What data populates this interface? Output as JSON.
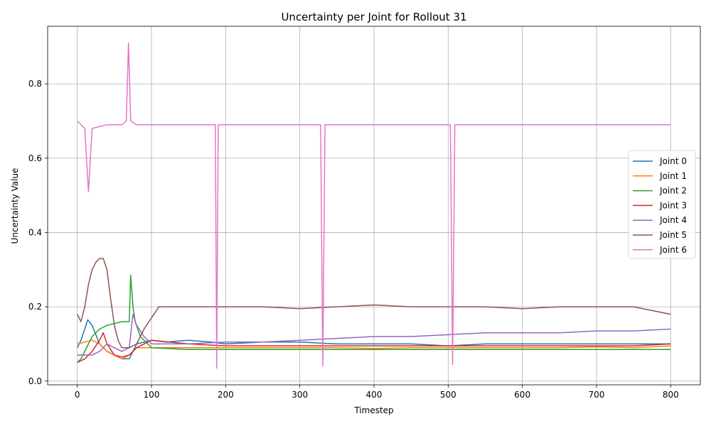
{
  "chart_data": {
    "type": "line",
    "title": "Uncertainty per Joint for Rollout 31",
    "xlabel": "Timestep",
    "ylabel": "Uncertainty Value",
    "xlim": [
      -40,
      840
    ],
    "ylim": [
      -0.01,
      0.955
    ],
    "xticks": [
      0,
      100,
      200,
      300,
      400,
      500,
      600,
      700,
      800
    ],
    "yticks": [
      0.0,
      0.2,
      0.4,
      0.6,
      0.8
    ],
    "ytick_labels": [
      "0.0",
      "0.2",
      "0.4",
      "0.6",
      "0.8"
    ],
    "grid": true,
    "legend_position": "center-right",
    "series": [
      {
        "name": "Joint 0",
        "color": "#1f77b4",
        "x": [
          0,
          5,
          10,
          14,
          20,
          30,
          40,
          50,
          60,
          70,
          80,
          100,
          120,
          150,
          180,
          200,
          250,
          300,
          350,
          400,
          450,
          500,
          550,
          600,
          650,
          700,
          750,
          800
        ],
        "y": [
          0.09,
          0.11,
          0.14,
          0.165,
          0.15,
          0.1,
          0.08,
          0.07,
          0.06,
          0.06,
          0.1,
          0.11,
          0.105,
          0.11,
          0.105,
          0.1,
          0.105,
          0.105,
          0.1,
          0.1,
          0.1,
          0.095,
          0.1,
          0.1,
          0.1,
          0.1,
          0.1,
          0.1
        ]
      },
      {
        "name": "Joint 1",
        "color": "#ff7f0e",
        "x": [
          0,
          10,
          20,
          30,
          40,
          50,
          60,
          70,
          80,
          100,
          150,
          200,
          250,
          300,
          350,
          400,
          450,
          500,
          550,
          600,
          650,
          700,
          750,
          800
        ],
        "y": [
          0.1,
          0.105,
          0.11,
          0.1,
          0.08,
          0.07,
          0.06,
          0.07,
          0.09,
          0.09,
          0.09,
          0.09,
          0.09,
          0.09,
          0.09,
          0.088,
          0.09,
          0.09,
          0.09,
          0.09,
          0.09,
          0.092,
          0.09,
          0.095
        ]
      },
      {
        "name": "Joint 2",
        "color": "#2ca02c",
        "x": [
          0,
          5,
          10,
          20,
          30,
          40,
          50,
          60,
          70,
          72,
          75,
          78,
          85,
          100,
          150,
          200,
          250,
          300,
          350,
          400,
          450,
          500,
          550,
          600,
          650,
          700,
          750,
          800
        ],
        "y": [
          0.05,
          0.06,
          0.08,
          0.12,
          0.14,
          0.15,
          0.155,
          0.16,
          0.16,
          0.285,
          0.2,
          0.16,
          0.12,
          0.09,
          0.085,
          0.085,
          0.085,
          0.085,
          0.085,
          0.085,
          0.085,
          0.085,
          0.085,
          0.085,
          0.085,
          0.085,
          0.085,
          0.085
        ]
      },
      {
        "name": "Joint 3",
        "color": "#d62728",
        "x": [
          0,
          10,
          20,
          30,
          35,
          40,
          50,
          60,
          70,
          80,
          100,
          150,
          200,
          250,
          300,
          350,
          400,
          450,
          500,
          550,
          600,
          650,
          700,
          750,
          800
        ],
        "y": [
          0.05,
          0.06,
          0.08,
          0.11,
          0.13,
          0.1,
          0.07,
          0.065,
          0.07,
          0.09,
          0.11,
          0.1,
          0.095,
          0.095,
          0.095,
          0.095,
          0.095,
          0.095,
          0.095,
          0.095,
          0.095,
          0.095,
          0.095,
          0.095,
          0.1
        ]
      },
      {
        "name": "Joint 4",
        "color": "#9467bd",
        "x": [
          0,
          10,
          20,
          30,
          40,
          50,
          60,
          70,
          75,
          80,
          90,
          100,
          150,
          200,
          250,
          300,
          350,
          400,
          450,
          500,
          550,
          600,
          650,
          700,
          750,
          800
        ],
        "y": [
          0.07,
          0.07,
          0.07,
          0.08,
          0.1,
          0.09,
          0.08,
          0.09,
          0.18,
          0.15,
          0.12,
          0.1,
          0.1,
          0.105,
          0.105,
          0.11,
          0.115,
          0.12,
          0.12,
          0.125,
          0.13,
          0.13,
          0.13,
          0.135,
          0.135,
          0.14
        ]
      },
      {
        "name": "Joint 5",
        "color": "#8c564b",
        "x": [
          0,
          5,
          10,
          15,
          20,
          25,
          30,
          35,
          40,
          45,
          50,
          55,
          60,
          65,
          70,
          80,
          90,
          100,
          110,
          150,
          200,
          250,
          300,
          350,
          400,
          450,
          500,
          550,
          600,
          650,
          700,
          750,
          800
        ],
        "y": [
          0.18,
          0.16,
          0.2,
          0.26,
          0.3,
          0.32,
          0.33,
          0.33,
          0.3,
          0.22,
          0.15,
          0.11,
          0.09,
          0.09,
          0.09,
          0.1,
          0.14,
          0.17,
          0.2,
          0.2,
          0.2,
          0.2,
          0.195,
          0.2,
          0.205,
          0.2,
          0.2,
          0.2,
          0.195,
          0.2,
          0.2,
          0.2,
          0.18
        ]
      },
      {
        "name": "Joint 6",
        "color": "#e377c2",
        "x": [
          0,
          10,
          15,
          20,
          40,
          60,
          66,
          69,
          72,
          80,
          100,
          150,
          186,
          188,
          190,
          200,
          250,
          300,
          328,
          331,
          334,
          350,
          400,
          450,
          500,
          503,
          506,
          509,
          550,
          600,
          650,
          700,
          750,
          800
        ],
        "y": [
          0.7,
          0.68,
          0.51,
          0.68,
          0.69,
          0.69,
          0.7,
          0.91,
          0.7,
          0.69,
          0.69,
          0.69,
          0.69,
          0.035,
          0.69,
          0.69,
          0.69,
          0.69,
          0.69,
          0.04,
          0.69,
          0.69,
          0.69,
          0.69,
          0.69,
          0.69,
          0.045,
          0.69,
          0.69,
          0.69,
          0.69,
          0.69,
          0.69,
          0.69
        ]
      }
    ]
  }
}
